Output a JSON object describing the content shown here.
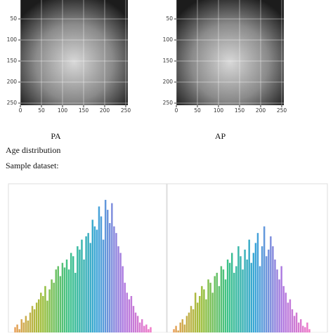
{
  "figures": [
    {
      "caption": "PA",
      "xticks": [
        0,
        50,
        100,
        150,
        200,
        250
      ],
      "yticks": [
        50,
        100,
        150,
        200,
        250
      ],
      "xlim": [
        0,
        255
      ],
      "ylim": [
        0,
        255
      ],
      "grid": true
    },
    {
      "caption": "AP",
      "xticks": [
        0,
        50,
        100,
        150,
        200,
        250
      ],
      "yticks": [
        50,
        100,
        150,
        200,
        250
      ],
      "xlim": [
        0,
        255
      ],
      "ylim": [
        0,
        255
      ],
      "grid": true
    }
  ],
  "texts": [
    "Age distribution",
    "Sample dataset:"
  ],
  "chart_data": [
    {
      "type": "bar",
      "ylim": [
        0,
        220
      ],
      "colors": [
        "#e8a15a",
        "#9fbf3a",
        "#3cc28a",
        "#3aa6d8",
        "#b07ae0",
        "#f07ac8"
      ],
      "values": [
        8,
        12,
        5,
        20,
        15,
        25,
        18,
        30,
        40,
        35,
        45,
        50,
        60,
        55,
        70,
        48,
        65,
        80,
        75,
        95,
        100,
        85,
        105,
        98,
        110,
        95,
        120,
        115,
        90,
        130,
        125,
        140,
        110,
        145,
        150,
        135,
        170,
        160,
        155,
        190,
        175,
        140,
        200,
        185,
        165,
        195,
        160,
        150,
        130,
        120,
        100,
        75,
        60,
        50,
        55,
        40,
        30,
        25,
        15,
        20,
        10,
        12,
        5,
        8
      ]
    },
    {
      "type": "bar",
      "ylim": [
        0,
        220
      ],
      "colors": [
        "#e8a15a",
        "#9fbf3a",
        "#3cc28a",
        "#3aa6d8",
        "#b07ae0",
        "#f07ac8"
      ],
      "values": [
        5,
        10,
        3,
        15,
        20,
        12,
        25,
        30,
        40,
        35,
        60,
        45,
        55,
        70,
        65,
        50,
        80,
        75,
        60,
        85,
        90,
        70,
        100,
        95,
        80,
        110,
        105,
        120,
        90,
        100,
        130,
        115,
        95,
        125,
        110,
        140,
        105,
        120,
        135,
        150,
        100,
        130,
        160,
        115,
        125,
        145,
        130,
        110,
        95,
        80,
        100,
        70,
        60,
        45,
        50,
        35,
        25,
        30,
        15,
        20,
        10,
        8,
        15,
        5
      ]
    }
  ]
}
